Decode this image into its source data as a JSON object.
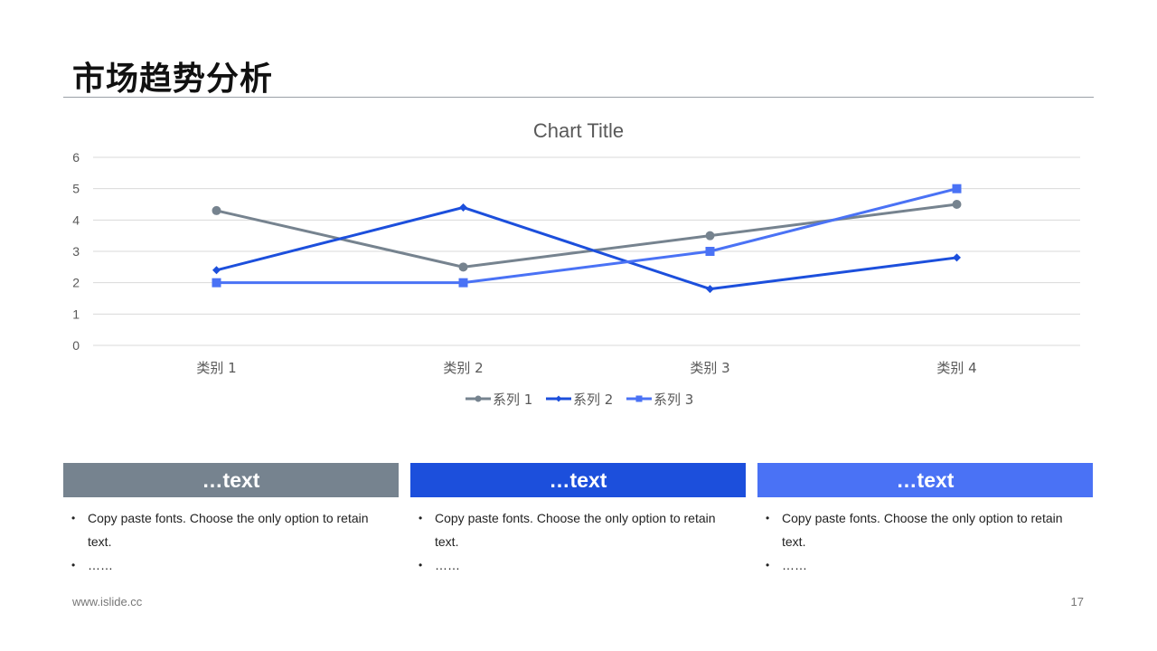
{
  "page": {
    "title": "市场趋势分析",
    "footer_url": "www.islide.cc",
    "page_number": "17"
  },
  "chart_data": {
    "type": "line",
    "title": "Chart Title",
    "categories": [
      "类别 1",
      "类别 2",
      "类别 3",
      "类别 4"
    ],
    "ylim": [
      0,
      6
    ],
    "yticks": [
      "0",
      "1",
      "2",
      "3",
      "4",
      "5",
      "6"
    ],
    "grid": true,
    "legend_position": "bottom",
    "series": [
      {
        "name": "系列 1",
        "values": [
          4.3,
          2.5,
          3.5,
          4.5
        ],
        "color": "#76838f",
        "marker": "circle"
      },
      {
        "name": "系列 2",
        "values": [
          2.4,
          4.4,
          1.8,
          2.8
        ],
        "color": "#1c4fdc",
        "marker": "diamond"
      },
      {
        "name": "系列 3",
        "values": [
          2,
          2,
          3,
          5
        ],
        "color": "#4a72f5",
        "marker": "square"
      }
    ]
  },
  "cards": [
    {
      "header": "…text",
      "color": "#76838f",
      "bullets": [
        "Copy paste fonts. Choose the only option to retain text.",
        "……"
      ]
    },
    {
      "header": "…text",
      "color": "#1c4fdc",
      "bullets": [
        "Copy paste fonts. Choose the only option to retain text.",
        "……"
      ]
    },
    {
      "header": "…text",
      "color": "#4a72f5",
      "bullets": [
        "Copy paste fonts. Choose the only option to retain text.",
        "……"
      ]
    }
  ]
}
